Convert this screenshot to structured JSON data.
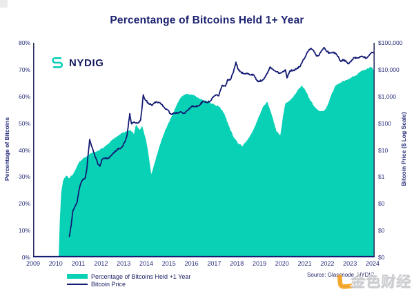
{
  "title": "Percentange of Bitcoins Held 1+ Year",
  "brand": {
    "name": "NYDIG"
  },
  "source": "Source: Glassnode, NYDIG",
  "watermark": {
    "text": "金色财经"
  },
  "colors": {
    "area": "#08d1b6",
    "line": "#141b73",
    "text": "#1d2166",
    "axis_side": "#2a3060",
    "axis_bottom": "#151d74",
    "watermark_orange": "#f6a21c"
  },
  "legend": [
    {
      "label": "Percentage of Bitcoins Held +1 Year",
      "type": "area"
    },
    {
      "label": "Bitcoin Price",
      "type": "line"
    }
  ],
  "chart_data": {
    "type": "area",
    "title": "Percentange of Bitcoins Held 1+ Year",
    "grid": false,
    "legend_position": "bottom-left",
    "x_axis": {
      "ticks": [
        "2009",
        "2010",
        "2011",
        "2012",
        "2013",
        "2014",
        "2015",
        "2016",
        "2017",
        "2018",
        "2019",
        "2020",
        "2021",
        "2022",
        "2023",
        "2024"
      ],
      "range": [
        2009,
        2024.09
      ]
    },
    "left_axis": {
      "label": "Percentage of Bitcoins",
      "ticks_top_to_bottom": [
        "80%",
        "70%",
        "60%",
        "50%",
        "40%",
        "30%",
        "20%",
        "10%",
        "0%"
      ],
      "range": [
        0,
        80
      ]
    },
    "right_axis": {
      "label": "Bitcoin Price ($ Log Scale)",
      "ticks_top_to_bottom": [
        "$100,000",
        "$10,000",
        "$1,000",
        "$100",
        "$10",
        "$1",
        "$0",
        "$0",
        "$0"
      ],
      "scale": "log",
      "range": [
        0.001,
        100000
      ]
    },
    "series": [
      {
        "name": "Percentage of Bitcoins Held +1 Year",
        "type": "area",
        "axis": "left",
        "unit": "%",
        "points": [
          [
            2010.13,
            0
          ],
          [
            2010.18,
            14
          ],
          [
            2010.24,
            24
          ],
          [
            2010.32,
            28.5
          ],
          [
            2010.45,
            30.5
          ],
          [
            2010.6,
            29.5
          ],
          [
            2010.8,
            31.5
          ],
          [
            2011.0,
            35
          ],
          [
            2011.15,
            36.5
          ],
          [
            2011.35,
            37.5
          ],
          [
            2011.6,
            39
          ],
          [
            2011.8,
            39.5
          ],
          [
            2012.0,
            40.5
          ],
          [
            2012.2,
            41.5
          ],
          [
            2012.45,
            43.5
          ],
          [
            2012.7,
            45
          ],
          [
            2012.95,
            46.5
          ],
          [
            2013.15,
            47
          ],
          [
            2013.3,
            47.5
          ],
          [
            2013.45,
            46
          ],
          [
            2013.55,
            49.5
          ],
          [
            2013.7,
            47.5
          ],
          [
            2013.82,
            49
          ],
          [
            2013.95,
            45
          ],
          [
            2014.05,
            41
          ],
          [
            2014.22,
            31
          ],
          [
            2014.4,
            36
          ],
          [
            2014.55,
            40.5
          ],
          [
            2014.75,
            45.5
          ],
          [
            2014.95,
            49.5
          ],
          [
            2015.15,
            53
          ],
          [
            2015.35,
            57
          ],
          [
            2015.55,
            60
          ],
          [
            2015.8,
            61
          ],
          [
            2016.1,
            60.5
          ],
          [
            2016.4,
            59
          ],
          [
            2016.75,
            58
          ],
          [
            2017.0,
            57
          ],
          [
            2017.25,
            56
          ],
          [
            2017.45,
            53.5
          ],
          [
            2017.65,
            49
          ],
          [
            2017.85,
            45
          ],
          [
            2018.05,
            42.5
          ],
          [
            2018.25,
            41.5
          ],
          [
            2018.45,
            43.5
          ],
          [
            2018.7,
            47
          ],
          [
            2018.95,
            52
          ],
          [
            2019.15,
            56
          ],
          [
            2019.35,
            58
          ],
          [
            2019.55,
            53
          ],
          [
            2019.75,
            47
          ],
          [
            2019.92,
            45.5
          ],
          [
            2020.05,
            53
          ],
          [
            2020.15,
            57.5
          ],
          [
            2020.35,
            58.5
          ],
          [
            2020.55,
            60.5
          ],
          [
            2020.75,
            63
          ],
          [
            2020.88,
            64
          ],
          [
            2021.05,
            62
          ],
          [
            2021.25,
            58.5
          ],
          [
            2021.45,
            56
          ],
          [
            2021.65,
            54.5
          ],
          [
            2021.85,
            54.5
          ],
          [
            2022.0,
            56.5
          ],
          [
            2022.15,
            60
          ],
          [
            2022.35,
            64
          ],
          [
            2022.55,
            65
          ],
          [
            2022.8,
            66
          ],
          [
            2023.05,
            67
          ],
          [
            2023.3,
            68
          ],
          [
            2023.5,
            69.5
          ],
          [
            2023.7,
            70
          ],
          [
            2023.9,
            71
          ],
          [
            2024.0,
            70.5
          ],
          [
            2024.09,
            69
          ]
        ]
      },
      {
        "name": "Bitcoin Price",
        "type": "line",
        "axis": "right",
        "unit": "USD",
        "points": [
          [
            2010.6,
            0.006
          ],
          [
            2010.68,
            0.015
          ],
          [
            2010.75,
            0.05
          ],
          [
            2010.85,
            0.08
          ],
          [
            2010.95,
            0.12
          ],
          [
            2011.02,
            0.3
          ],
          [
            2011.1,
            0.55
          ],
          [
            2011.2,
            0.8
          ],
          [
            2011.3,
            0.9
          ],
          [
            2011.38,
            2.2
          ],
          [
            2011.44,
            8
          ],
          [
            2011.5,
            25
          ],
          [
            2011.58,
            14
          ],
          [
            2011.65,
            10
          ],
          [
            2011.75,
            5.5
          ],
          [
            2011.85,
            3.2
          ],
          [
            2011.95,
            2.5
          ],
          [
            2012.05,
            4.5
          ],
          [
            2012.15,
            5
          ],
          [
            2012.3,
            4.8
          ],
          [
            2012.45,
            6.2
          ],
          [
            2012.6,
            8.5
          ],
          [
            2012.7,
            10
          ],
          [
            2012.8,
            11.5
          ],
          [
            2012.92,
            13
          ],
          [
            2013.05,
            20
          ],
          [
            2013.15,
            35
          ],
          [
            2013.27,
            230
          ],
          [
            2013.35,
            95
          ],
          [
            2013.45,
            110
          ],
          [
            2013.6,
            100
          ],
          [
            2013.75,
            130
          ],
          [
            2013.87,
            1150
          ],
          [
            2013.95,
            750
          ],
          [
            2014.1,
            550
          ],
          [
            2014.25,
            460
          ],
          [
            2014.42,
            620
          ],
          [
            2014.6,
            590
          ],
          [
            2014.8,
            380
          ],
          [
            2014.95,
            310
          ],
          [
            2015.1,
            215
          ],
          [
            2015.25,
            245
          ],
          [
            2015.4,
            235
          ],
          [
            2015.55,
            265
          ],
          [
            2015.7,
            235
          ],
          [
            2015.85,
            310
          ],
          [
            2016.0,
            430
          ],
          [
            2016.15,
            415
          ],
          [
            2016.35,
            450
          ],
          [
            2016.5,
            670
          ],
          [
            2016.65,
            610
          ],
          [
            2016.8,
            640
          ],
          [
            2016.95,
            960
          ],
          [
            2017.1,
            1150
          ],
          [
            2017.2,
            1050
          ],
          [
            2017.35,
            2600
          ],
          [
            2017.5,
            2400
          ],
          [
            2017.6,
            4300
          ],
          [
            2017.72,
            4200
          ],
          [
            2017.85,
            8000
          ],
          [
            2017.96,
            19000
          ],
          [
            2018.05,
            10500
          ],
          [
            2018.15,
            8300
          ],
          [
            2018.3,
            7000
          ],
          [
            2018.45,
            7400
          ],
          [
            2018.6,
            6300
          ],
          [
            2018.75,
            6400
          ],
          [
            2018.88,
            4000
          ],
          [
            2019.0,
            3700
          ],
          [
            2019.12,
            3900
          ],
          [
            2019.25,
            5200
          ],
          [
            2019.38,
            8500
          ],
          [
            2019.47,
            12500
          ],
          [
            2019.6,
            10200
          ],
          [
            2019.75,
            8300
          ],
          [
            2019.9,
            7300
          ],
          [
            2020.05,
            8500
          ],
          [
            2020.15,
            9800
          ],
          [
            2020.22,
            4900
          ],
          [
            2020.35,
            9100
          ],
          [
            2020.5,
            9300
          ],
          [
            2020.65,
            10800
          ],
          [
            2020.8,
            13000
          ],
          [
            2020.92,
            22000
          ],
          [
            2021.05,
            33000
          ],
          [
            2021.15,
            48000
          ],
          [
            2021.28,
            62000
          ],
          [
            2021.4,
            50000
          ],
          [
            2021.52,
            32000
          ],
          [
            2021.62,
            34000
          ],
          [
            2021.72,
            47000
          ],
          [
            2021.85,
            66000
          ],
          [
            2021.95,
            50000
          ],
          [
            2022.1,
            41000
          ],
          [
            2022.25,
            45000
          ],
          [
            2022.4,
            38000
          ],
          [
            2022.5,
            29000
          ],
          [
            2022.6,
            20000
          ],
          [
            2022.72,
            23500
          ],
          [
            2022.85,
            19500
          ],
          [
            2022.95,
            16500
          ],
          [
            2023.08,
            22500
          ],
          [
            2023.2,
            28000
          ],
          [
            2023.35,
            27500
          ],
          [
            2023.48,
            30500
          ],
          [
            2023.6,
            29500
          ],
          [
            2023.72,
            26500
          ],
          [
            2023.85,
            34500
          ],
          [
            2023.95,
            42500
          ],
          [
            2024.02,
            43500
          ],
          [
            2024.07,
            47000
          ],
          [
            2024.12,
            52000
          ],
          [
            2024.16,
            62000
          ],
          [
            2024.2,
            69000
          ]
        ]
      }
    ]
  }
}
